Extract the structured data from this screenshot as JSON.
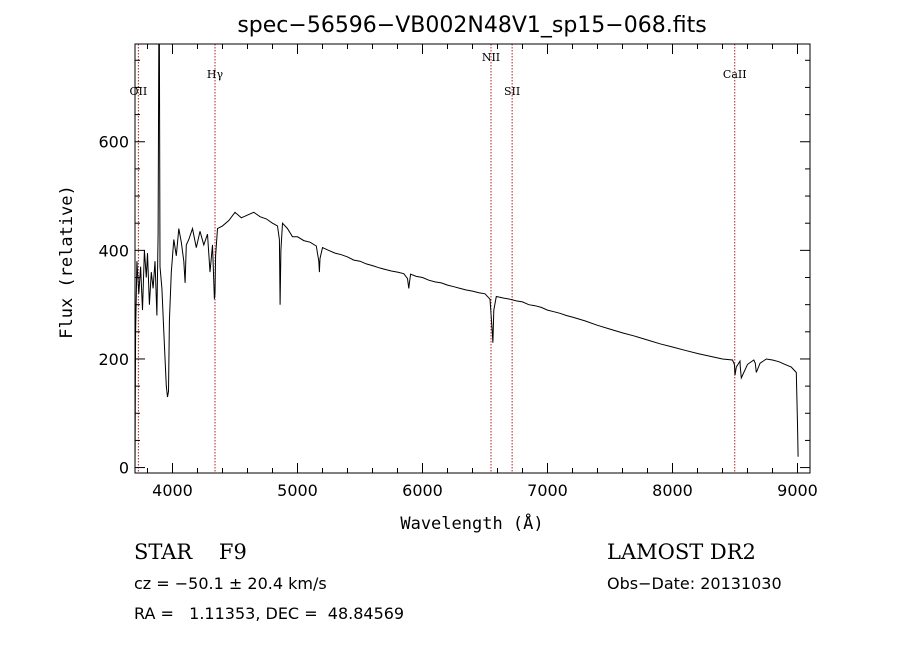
{
  "chart_data": {
    "type": "line",
    "title": "spec−56596−VB002N48V1_sp15−068.fits",
    "xlabel": "Wavelength (Å)",
    "ylabel": "Flux (relative)",
    "xlim": [
      3700,
      9100
    ],
    "ylim": [
      -10,
      780
    ],
    "x_ticks": [
      4000,
      5000,
      6000,
      7000,
      8000,
      9000
    ],
    "y_ticks": [
      0,
      200,
      400,
      600
    ],
    "grid": false,
    "series": [
      {
        "x": [
          3700,
          3705,
          3715,
          3730,
          3745,
          3760,
          3775,
          3790,
          3800,
          3815,
          3830,
          3845,
          3860,
          3875,
          3885,
          3890,
          3895,
          3900,
          3915,
          3930,
          3950,
          3960,
          3968,
          3975,
          3990,
          4010,
          4030,
          4050,
          4070,
          4090,
          4101,
          4110,
          4130,
          4160,
          4190,
          4220,
          4250,
          4280,
          4300,
          4320,
          4335,
          4340,
          4345,
          4360,
          4400,
          4450,
          4500,
          4550,
          4600,
          4650,
          4700,
          4750,
          4800,
          4840,
          4855,
          4861,
          4867,
          4880,
          4920,
          4960,
          5000,
          5050,
          5100,
          5150,
          5170,
          5175,
          5180,
          5200,
          5250,
          5300,
          5350,
          5400,
          5450,
          5500,
          5550,
          5600,
          5650,
          5700,
          5750,
          5800,
          5850,
          5880,
          5890,
          5895,
          5905,
          5950,
          6000,
          6050,
          6100,
          6150,
          6200,
          6250,
          6300,
          6350,
          6400,
          6450,
          6500,
          6540,
          6555,
          6563,
          6570,
          6590,
          6650,
          6700,
          6750,
          6800,
          6850,
          6900,
          6950,
          7000,
          7050,
          7100,
          7150,
          7200,
          7300,
          7400,
          7500,
          7600,
          7700,
          7800,
          7900,
          8000,
          8100,
          8200,
          8300,
          8400,
          8480,
          8495,
          8500,
          8510,
          8540,
          8542,
          8550,
          8600,
          8650,
          8662,
          8670,
          8700,
          8750,
          8800,
          8850,
          8900,
          8950,
          8990,
          9000,
          9005
        ],
        "y": [
          0,
          250,
          380,
          320,
          370,
          290,
          400,
          350,
          395,
          300,
          360,
          330,
          380,
          280,
          430,
          780,
          780,
          370,
          330,
          250,
          150,
          130,
          140,
          270,
          360,
          420,
          390,
          440,
          415,
          380,
          340,
          410,
          420,
          440,
          405,
          435,
          410,
          430,
          360,
          410,
          310,
          320,
          390,
          440,
          445,
          455,
          470,
          460,
          465,
          470,
          462,
          458,
          450,
          445,
          420,
          300,
          400,
          450,
          440,
          425,
          425,
          418,
          415,
          408,
          380,
          360,
          385,
          405,
          400,
          395,
          392,
          388,
          382,
          380,
          375,
          372,
          368,
          365,
          362,
          360,
          357,
          348,
          330,
          340,
          356,
          352,
          350,
          345,
          342,
          340,
          336,
          333,
          330,
          327,
          325,
          322,
          320,
          310,
          260,
          230,
          290,
          315,
          312,
          310,
          307,
          305,
          300,
          298,
          295,
          290,
          287,
          284,
          280,
          277,
          270,
          262,
          255,
          248,
          242,
          235,
          228,
          222,
          216,
          210,
          205,
          200,
          198,
          190,
          170,
          185,
          196,
          185,
          165,
          190,
          198,
          192,
          175,
          192,
          200,
          198,
          195,
          190,
          185,
          175,
          80,
          20
        ]
      }
    ],
    "annotations": [
      {
        "label": "OII",
        "x": 3727
      },
      {
        "label": "Hγ",
        "x": 4340
      },
      {
        "label": "NII",
        "x": 6548
      },
      {
        "label": "SII",
        "x": 6717
      },
      {
        "label": "CaII",
        "x": 8498
      }
    ],
    "line_color": "#000000",
    "marker_color": "#b22222"
  },
  "info": {
    "left_line1": "STAR    F9",
    "left_line2": "cz = −50.1 ± 20.4 km/s",
    "left_line3": "RA =   1.11353, DEC =  48.84569",
    "right_line1": "LAMOST DR2",
    "right_line2": "Obs−Date: 20131030"
  }
}
